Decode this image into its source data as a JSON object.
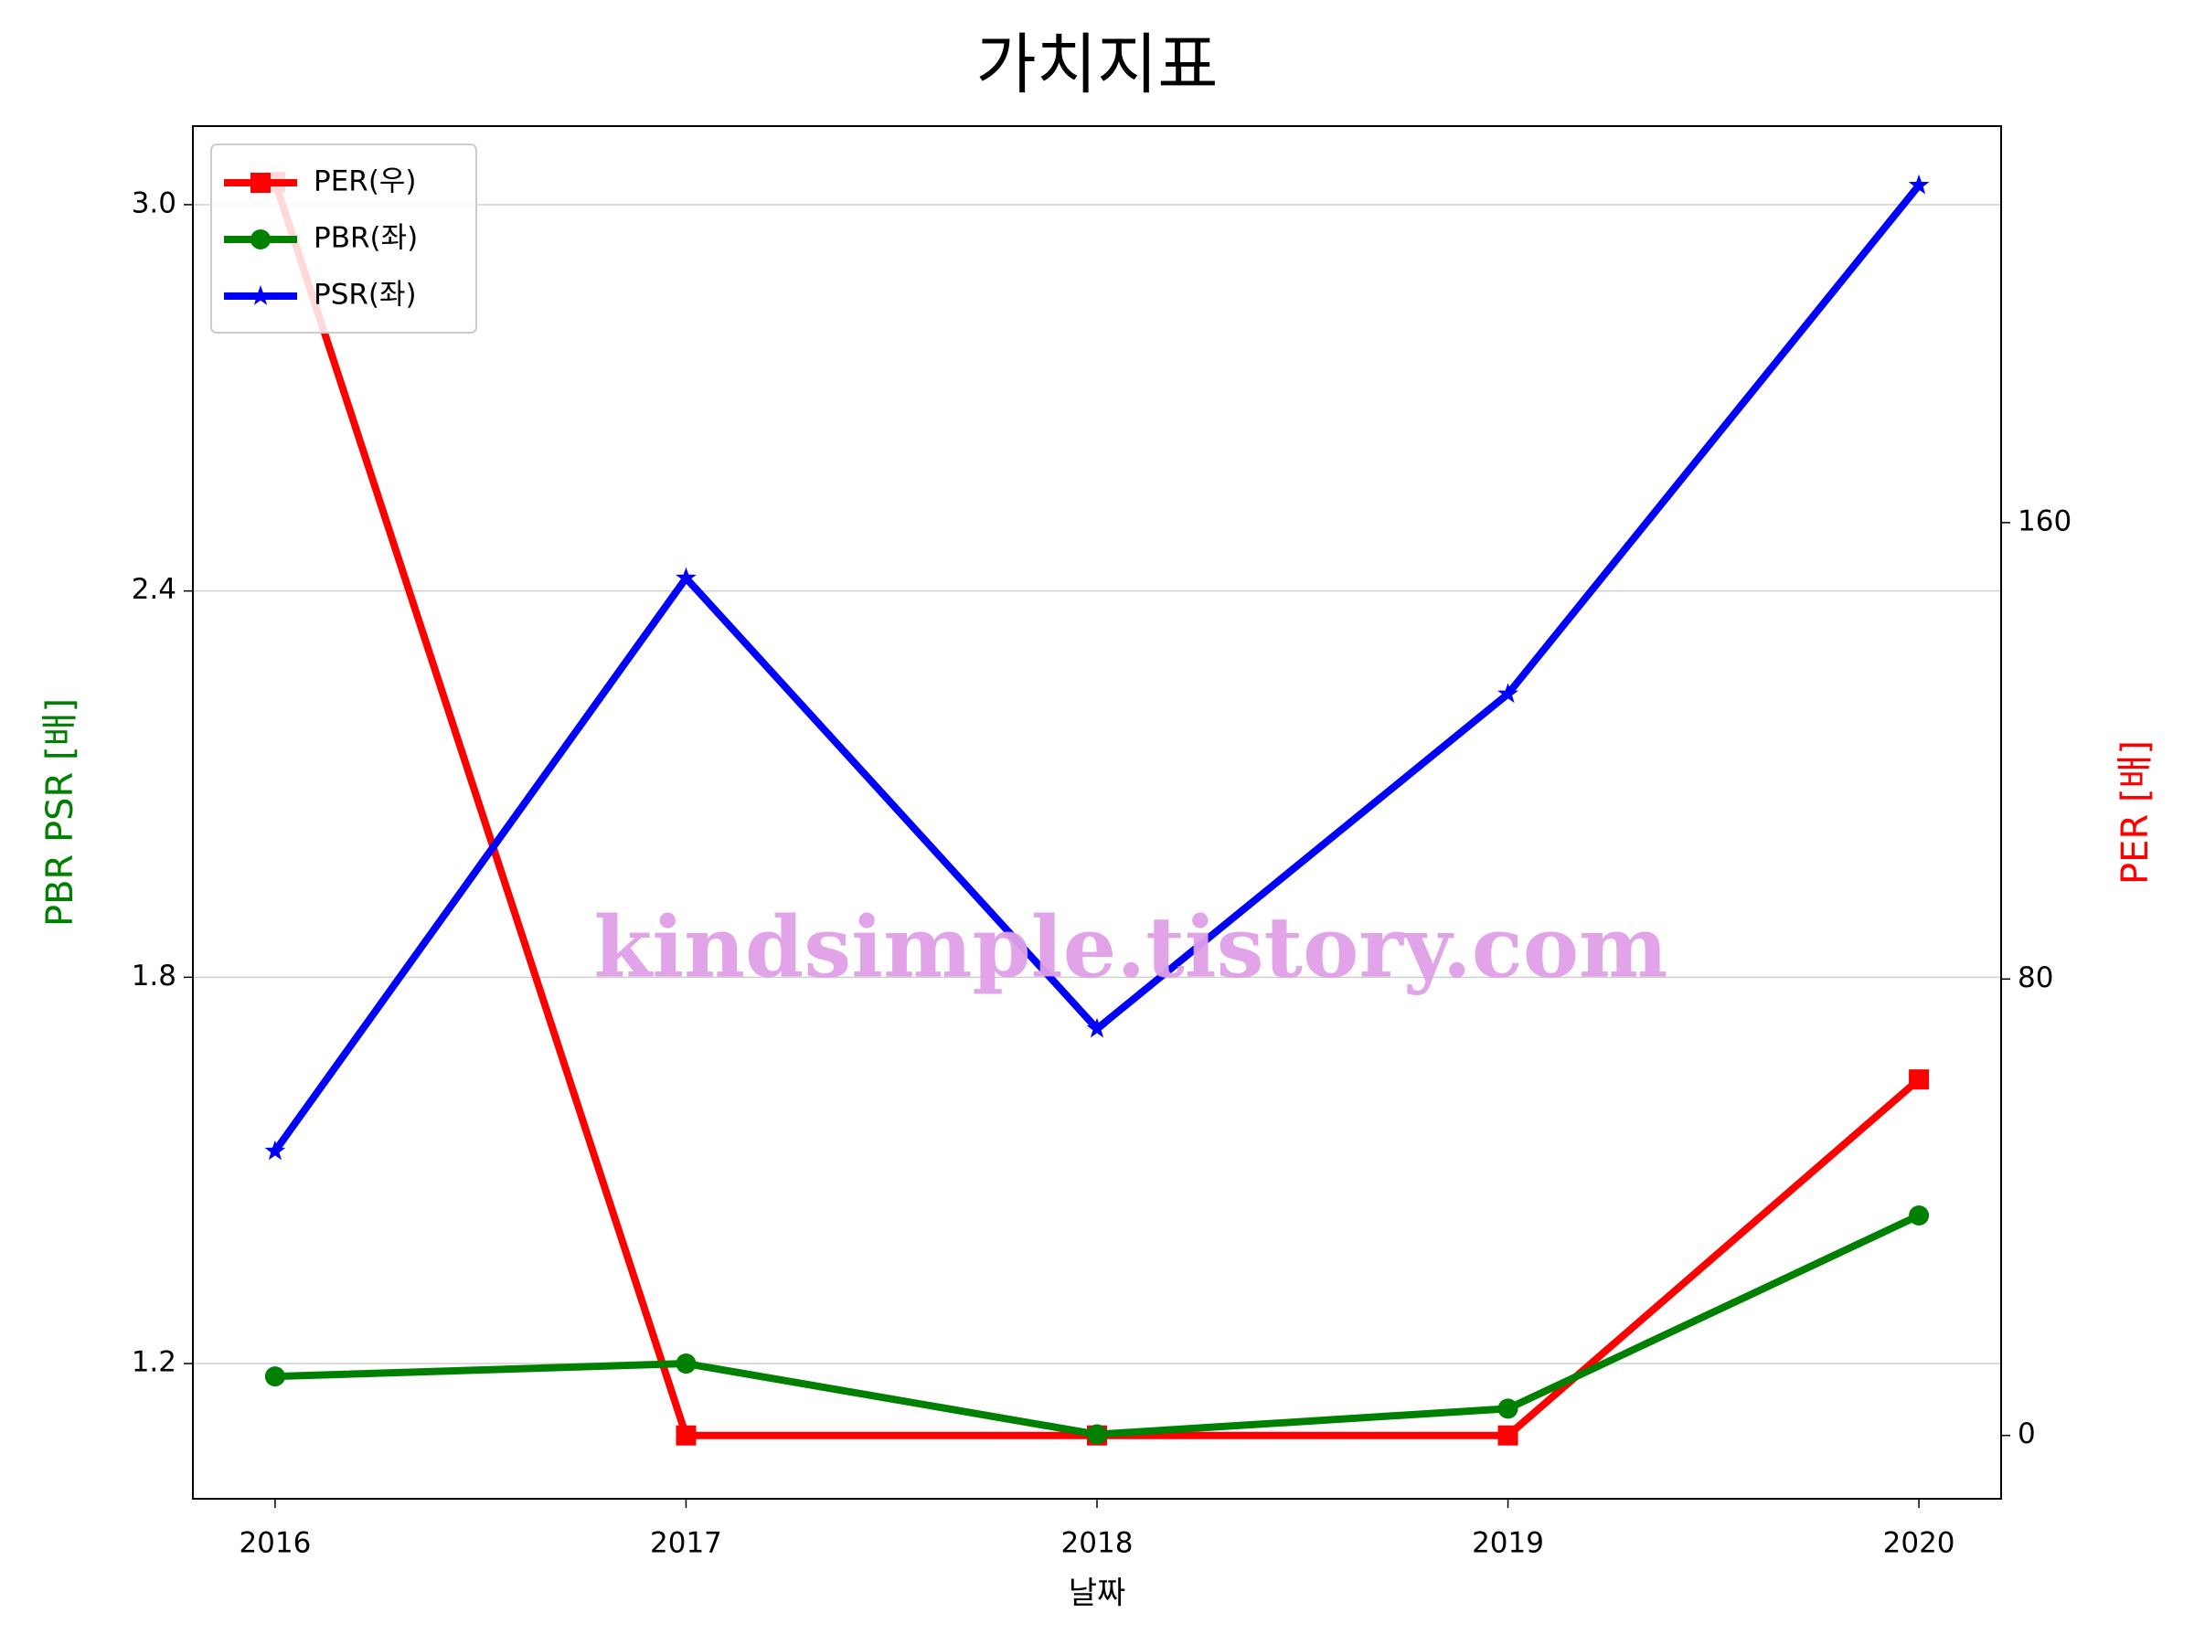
{
  "chart_data": {
    "type": "line",
    "title": "가치지표",
    "x_label": "날짜",
    "y_label": "PBR PSR [배]",
    "y2_label": "PER [배]",
    "annotation": "kindsimple.tistory.com",
    "x": [
      2016,
      2017,
      2018,
      2019,
      2020
    ],
    "xlim": [
      2015.8,
      2020.2
    ],
    "xticks": [
      2016,
      2017,
      2018,
      2019,
      2020
    ],
    "ylim": [
      0.99,
      3.122
    ],
    "yticks": [
      {
        "value": 1.2,
        "label": "1.2"
      },
      {
        "value": 1.8,
        "label": "1.8"
      },
      {
        "value": 2.4,
        "label": "2.4"
      },
      {
        "value": 3.0,
        "label": "3.0"
      }
    ],
    "y2lim": [
      -11.1,
      229.5
    ],
    "y2ticks": [
      0,
      80,
      160
    ],
    "grid": true,
    "legend": "upper left",
    "y_label_color": "green",
    "y2_label_color": "red",
    "series": [
      {
        "name": "PER(우)",
        "color": "red",
        "marker": "square",
        "axis": "y2",
        "values": [
          219.7,
          0,
          0,
          0,
          62.4
        ]
      },
      {
        "name": "PBR(좌)",
        "color": "green",
        "marker": "circle",
        "values": [
          1.18,
          1.2,
          1.09,
          1.13,
          1.43
        ]
      },
      {
        "name": "PSR(좌)",
        "color": "blue",
        "marker": "star",
        "values": [
          1.53,
          2.42,
          1.72,
          2.24,
          3.03
        ]
      }
    ]
  }
}
